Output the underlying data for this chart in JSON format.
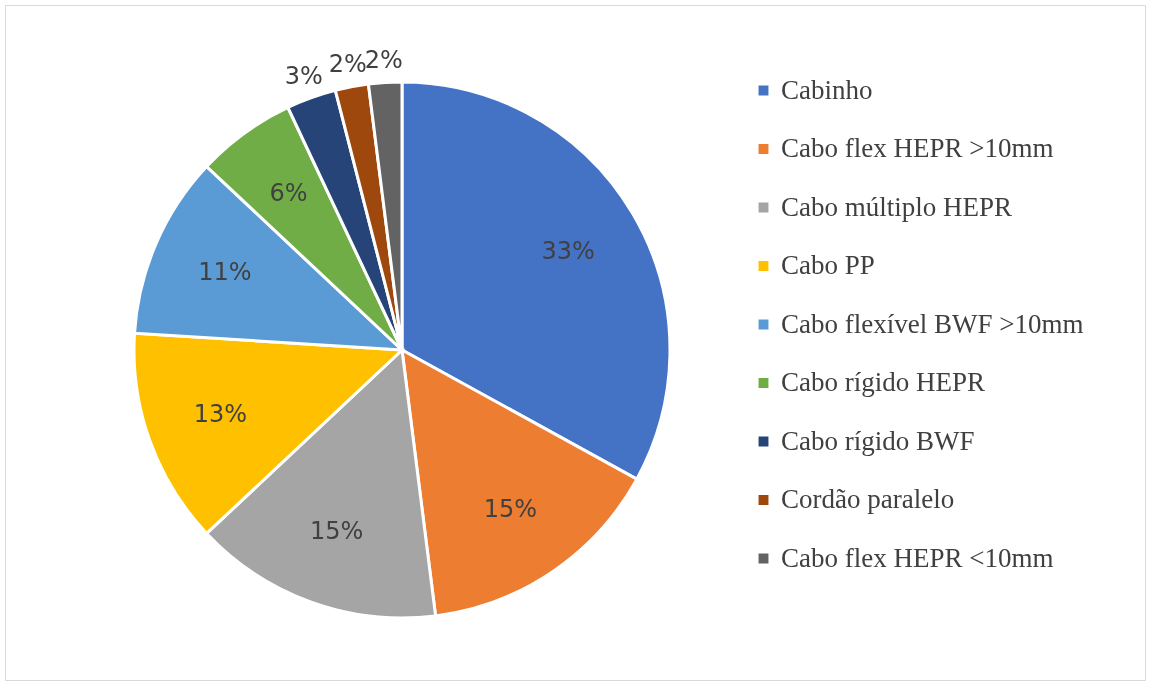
{
  "chart_data": {
    "type": "pie",
    "categories": [
      "Cabinho",
      "Cabo flex HEPR >10mm",
      "Cabo múltiplo HEPR",
      "Cabo PP",
      "Cabo flexível BWF >10mm",
      "Cabo rígido HEPR",
      "Cabo rígido BWF",
      "Cordão paralelo",
      "Cabo flex HEPR <10mm"
    ],
    "values": [
      33,
      15,
      15,
      13,
      11,
      6,
      3,
      2,
      2
    ],
    "colors": [
      "#4472c4",
      "#ed7d31",
      "#a5a5a5",
      "#ffc000",
      "#5b9bd5",
      "#70ad47",
      "#264478",
      "#9e480e",
      "#636363"
    ],
    "value_labels": [
      "33%",
      "15%",
      "15%",
      "13%",
      "11%",
      "6%",
      "3%",
      "2%",
      "2%"
    ],
    "legend": "right"
  }
}
